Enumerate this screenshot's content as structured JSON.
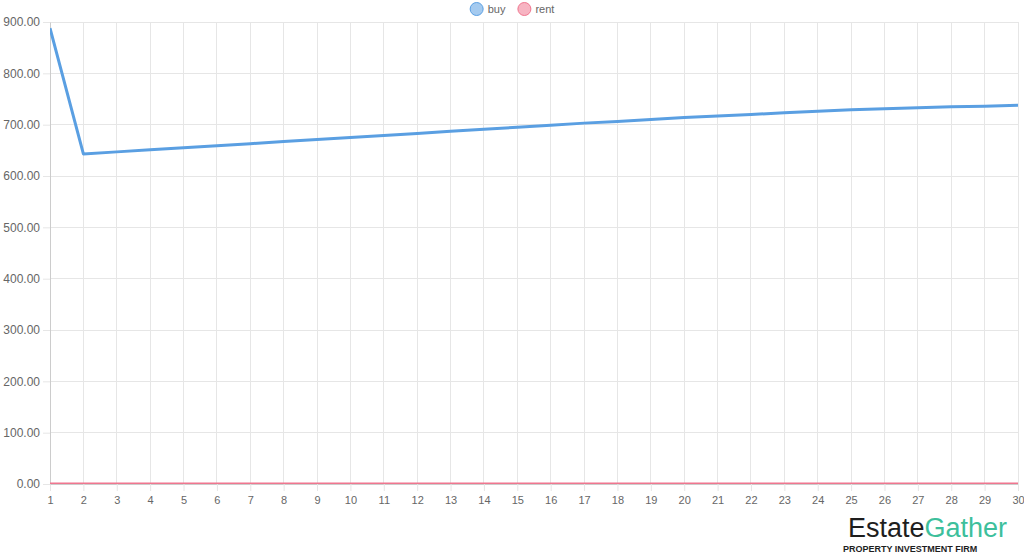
{
  "chart_data": {
    "type": "line",
    "x": [
      1,
      2,
      3,
      4,
      5,
      6,
      7,
      8,
      9,
      10,
      11,
      12,
      13,
      14,
      15,
      16,
      17,
      18,
      19,
      20,
      21,
      22,
      23,
      24,
      25,
      26,
      27,
      28,
      29,
      30
    ],
    "series": [
      {
        "name": "buy",
        "color": "#5a9fe2",
        "values": [
          888,
          643,
          647,
          651,
          655,
          659,
          663,
          667,
          671,
          675,
          679,
          683,
          687,
          691,
          695,
          699,
          703,
          706,
          710,
          714,
          717,
          720,
          723,
          726,
          729,
          731,
          733,
          735,
          736,
          738
        ]
      },
      {
        "name": "rent",
        "color": "#f0768f",
        "values": [
          0,
          0,
          0,
          0,
          0,
          0,
          0,
          0,
          0,
          0,
          0,
          0,
          0,
          0,
          0,
          0,
          0,
          0,
          0,
          0,
          0,
          0,
          0,
          0,
          0,
          0,
          0,
          0,
          0,
          0
        ]
      }
    ],
    "xlim": [
      1,
      30
    ],
    "xticks": [
      1,
      2,
      3,
      4,
      5,
      6,
      7,
      8,
      9,
      10,
      11,
      12,
      13,
      14,
      15,
      16,
      17,
      18,
      19,
      20,
      21,
      22,
      23,
      24,
      25,
      26,
      27,
      28,
      29,
      30
    ],
    "ylim": [
      0,
      900
    ],
    "yticks": [
      {
        "value": 0,
        "label": "0.00"
      },
      {
        "value": 100,
        "label": "100.00"
      },
      {
        "value": 200,
        "label": "200.00"
      },
      {
        "value": 300,
        "label": "300.00"
      },
      {
        "value": 400,
        "label": "400.00"
      },
      {
        "value": 500,
        "label": "500.00"
      },
      {
        "value": 600,
        "label": "600.00"
      },
      {
        "value": 700,
        "label": "700.00"
      },
      {
        "value": 800,
        "label": "800.00"
      },
      {
        "value": 900,
        "label": "900.00"
      }
    ],
    "grid": true,
    "legend": "top",
    "annotations": [
      "Estate",
      "Gather",
      "PROPERTY INVESTMENT FIRM"
    ]
  }
}
